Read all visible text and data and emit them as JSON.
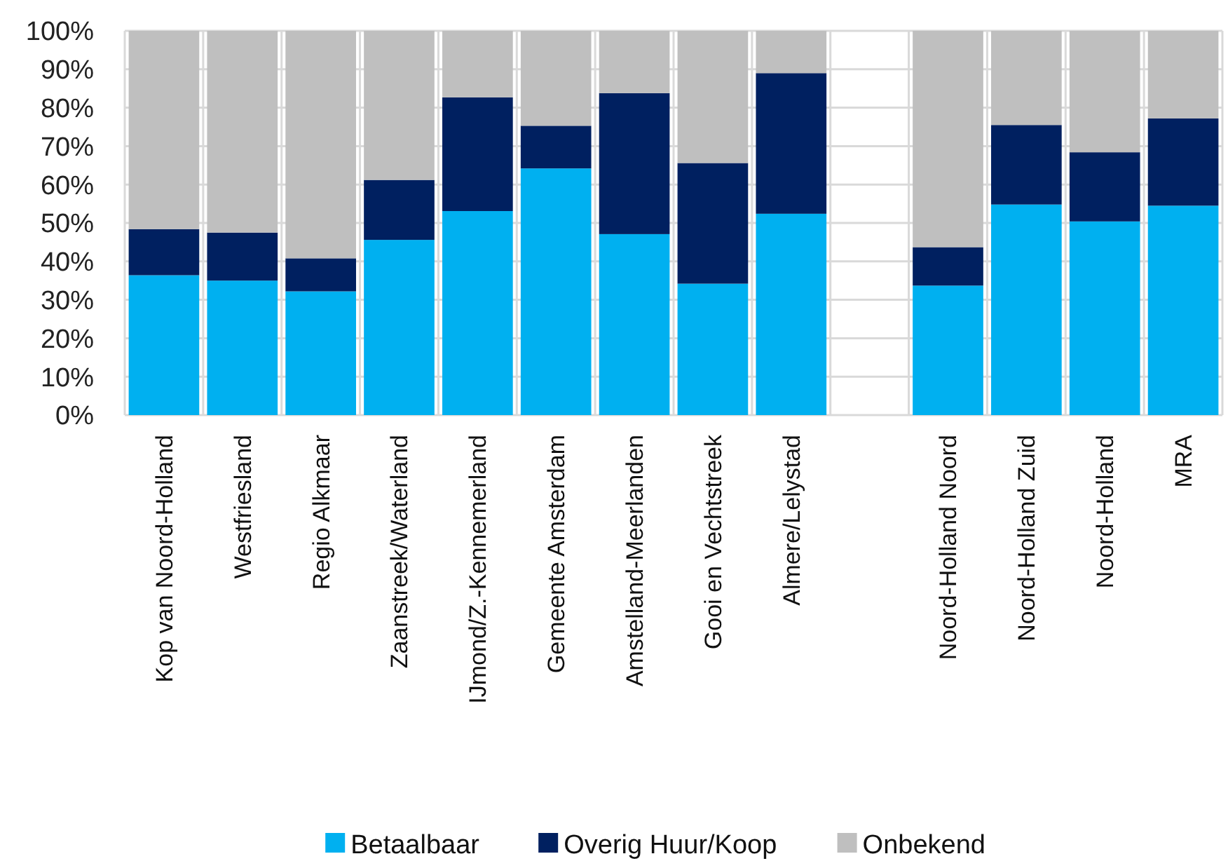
{
  "chart_data": {
    "type": "bar",
    "stacked": true,
    "categories": [
      "Kop van Noord-Holland",
      "Westfriesland",
      "Regio Alkmaar",
      "Zaanstreek/Waterland",
      "IJmond/Z.-Kennemerland",
      "Gemeente Amsterdam",
      "Amstelland-Meerlanden",
      "Gooi en Vechtstreek",
      "Almere/Lelystad",
      null,
      "Noord-Holland Noord",
      "Noord-Holland Zuid",
      "Noord-Holland",
      "MRA"
    ],
    "series": [
      {
        "name": "Betaalbaar",
        "color": "#00b0f0",
        "values": [
          36.4,
          35.0,
          32.2,
          45.6,
          53.1,
          64.2,
          47.1,
          34.2,
          52.4,
          null,
          33.7,
          54.8,
          50.4,
          54.5
        ]
      },
      {
        "name": "Overig Huur/Koop",
        "color": "#002060",
        "values": [
          12.0,
          12.5,
          8.6,
          15.6,
          29.6,
          11.1,
          36.7,
          31.4,
          36.6,
          null,
          10.0,
          20.7,
          18.0,
          22.7
        ]
      },
      {
        "name": "Onbekend",
        "color": "#bfbfbf",
        "values": [
          51.6,
          52.5,
          59.2,
          38.8,
          17.3,
          24.7,
          16.2,
          34.4,
          11.0,
          null,
          56.3,
          24.5,
          31.6,
          22.8
        ]
      }
    ],
    "ylim": [
      0,
      100
    ],
    "yticks": [
      {
        "value": 0,
        "label": "0%"
      },
      {
        "value": 10,
        "label": "10%"
      },
      {
        "value": 20,
        "label": "20%"
      },
      {
        "value": 30,
        "label": "30%"
      },
      {
        "value": 40,
        "label": "40%"
      },
      {
        "value": 50,
        "label": "50%"
      },
      {
        "value": 60,
        "label": "60%"
      },
      {
        "value": 70,
        "label": "70%"
      },
      {
        "value": 80,
        "label": "80%"
      },
      {
        "value": 90,
        "label": "90%"
      },
      {
        "value": 100,
        "label": "100%"
      }
    ],
    "grid": true,
    "legend": "bottom"
  }
}
